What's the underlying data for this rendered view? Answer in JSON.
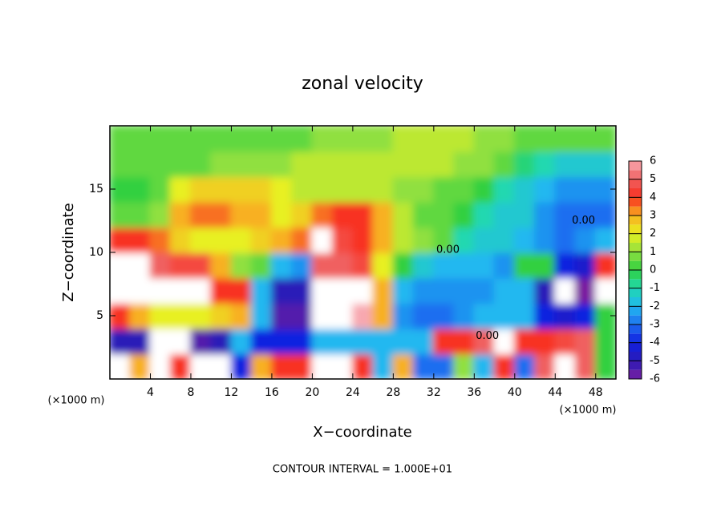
{
  "chart_data": {
    "type": "heatmap",
    "title": "zonal velocity",
    "x_label": "X−coordinate",
    "y_label": "Z−coordinate",
    "x_unit_left": "(×1000 m)",
    "x_unit_right": "(×1000 m)",
    "footer": "CONTOUR INTERVAL = 1.000E+01",
    "xlim": [
      0,
      50
    ],
    "ylim": [
      0,
      20
    ],
    "xticks": [
      4,
      8,
      12,
      16,
      20,
      24,
      28,
      32,
      36,
      40,
      44,
      48
    ],
    "yticks": [
      5,
      10,
      15
    ],
    "x": [
      1,
      3,
      5,
      7,
      9,
      11,
      13,
      15,
      17,
      19,
      21,
      23,
      25,
      27,
      29,
      31,
      33,
      35,
      37,
      39,
      41,
      43,
      45,
      47,
      49
    ],
    "y": [
      1,
      3,
      5,
      7,
      9,
      11,
      13,
      15,
      17,
      19
    ],
    "z": [
      [
        7,
        3,
        7,
        4,
        7,
        7,
        -4,
        3,
        4,
        4,
        7,
        7,
        4,
        -2,
        3,
        -3,
        -3,
        1,
        -2,
        4,
        -3,
        5,
        7,
        5,
        0
      ],
      [
        -5,
        -5,
        -7,
        -7,
        -5.5,
        -5,
        -2,
        -4,
        -4,
        -4,
        -2,
        -2,
        -2,
        -2,
        -2,
        -2,
        4,
        4,
        5,
        7,
        4,
        4,
        4.5,
        5,
        0
      ],
      [
        4,
        3,
        2,
        2,
        2,
        2.5,
        3,
        -2,
        -5.5,
        -5.5,
        7,
        7,
        6,
        3,
        -2.5,
        -3,
        -3,
        -2.5,
        -2,
        -2,
        -2,
        -4,
        -4.5,
        -4,
        0
      ],
      [
        7,
        7,
        7,
        7,
        7,
        4,
        4,
        -2,
        -5,
        -5,
        7,
        7,
        7,
        3,
        -2,
        -2.5,
        -2.5,
        -2.5,
        -2.5,
        -2,
        -2,
        -5,
        -7,
        -6,
        7
      ],
      [
        7,
        7,
        5,
        4.5,
        4.5,
        3,
        1,
        0.5,
        -2,
        -2.5,
        5,
        5,
        4.5,
        2,
        0,
        -1.5,
        -2,
        -2,
        -2,
        -2.5,
        0,
        0,
        -4,
        -4.5,
        4
      ],
      [
        4,
        4,
        3.5,
        2.5,
        2,
        2,
        2,
        2.5,
        3,
        3.5,
        7,
        4.5,
        4,
        3,
        1.5,
        1,
        0.5,
        -1,
        -1.5,
        -1.5,
        -2,
        -2.5,
        -3,
        -2.5,
        -2
      ],
      [
        0.5,
        0.5,
        1,
        3,
        3.5,
        3.5,
        3,
        3,
        2,
        2.5,
        3.5,
        4,
        4,
        3,
        1.5,
        0.5,
        0.5,
        0,
        -1,
        -1.5,
        -1.5,
        -2.5,
        -3,
        -3,
        -3
      ],
      [
        0,
        0,
        0.5,
        2,
        2.5,
        2.5,
        2.5,
        2.5,
        2,
        1.5,
        1.5,
        1.5,
        1.5,
        1.5,
        1,
        1,
        0.5,
        0.5,
        0,
        -1,
        -1.5,
        -2,
        -2.5,
        -2.5,
        -2.5
      ],
      [
        0.5,
        0.5,
        0.5,
        0.5,
        0.5,
        1,
        1,
        1,
        1,
        1.5,
        1.5,
        1.5,
        1.5,
        1.5,
        1.5,
        1.5,
        1.5,
        1,
        1,
        0.5,
        -0.5,
        -1,
        -1.5,
        -1.5,
        -1.5
      ],
      [
        0.5,
        0.5,
        0.5,
        0.5,
        0.5,
        0.5,
        0.5,
        0.5,
        0.5,
        0.5,
        1,
        1,
        1,
        1,
        1.5,
        1.5,
        1.5,
        1.5,
        1,
        1,
        0.5,
        0.5,
        0.5,
        0.5,
        0.5
      ]
    ],
    "colorbar_ticks": [
      -6,
      -5,
      -4,
      -3,
      -2,
      -1,
      0,
      1,
      2,
      3,
      4,
      5,
      6
    ],
    "colors": [
      "#7a1fa0",
      "#2a1ab8",
      "#1020e0",
      "#1e6ef0",
      "#20b8f0",
      "#20d8b0",
      "#30d040",
      "#90e040",
      "#e8f020",
      "#f8b020",
      "#f83020",
      "#f06060",
      "#f8a8b0"
    ],
    "out_of_range_color": "#ffffff",
    "annotations": [
      {
        "text": "0.00",
        "x": 33.4,
        "y": 10.2
      },
      {
        "text": "0.00",
        "x": 37.3,
        "y": 3.4
      },
      {
        "text": "0.00",
        "x": 46.8,
        "y": 12.5
      }
    ]
  }
}
